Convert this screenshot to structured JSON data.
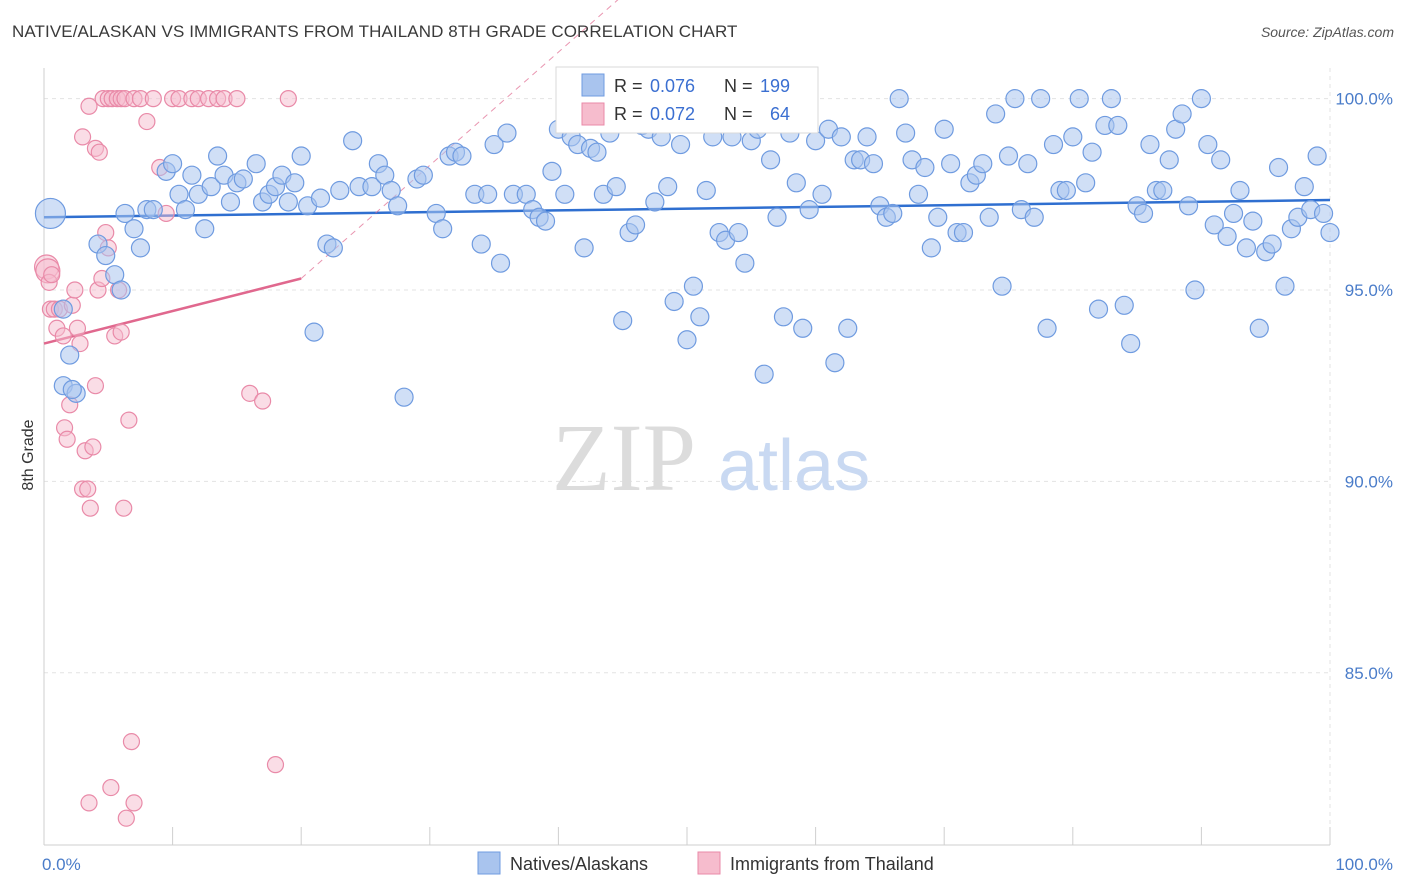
{
  "header": {
    "title": "NATIVE/ALASKAN VS IMMIGRANTS FROM THAILAND 8TH GRADE CORRELATION CHART",
    "source": "Source: ZipAtlas.com"
  },
  "watermark": {
    "zip": "ZIP",
    "atlas": "atlas"
  },
  "legend_box": {
    "rows": [
      {
        "r_label": "R = ",
        "r_value": "0.076",
        "n_label": "N = ",
        "n_value": "199"
      },
      {
        "r_label": "R = ",
        "r_value": "0.072",
        "n_label": "N = ",
        "n_value": "64"
      }
    ]
  },
  "bottom_legend": {
    "series1": "Natives/Alaskans",
    "series2": "Immigrants from Thailand"
  },
  "colors": {
    "blue_fill": "#a9c4ee",
    "blue_stroke": "#6f9be0",
    "blue_line": "#2f6fd0",
    "pink_fill": "#f6bccd",
    "pink_stroke": "#e98aa8",
    "pink_line": "#e0688e",
    "grid": "#e3e3e3",
    "axis_label": "#4a7cc9"
  },
  "chart_data": {
    "type": "scatter",
    "title": "NATIVE/ALASKAN VS IMMIGRANTS FROM THAILAND 8TH GRADE CORRELATION CHART",
    "xlabel": "",
    "ylabel": "8th Grade",
    "xlim": [
      0,
      100
    ],
    "ylim": [
      80.5,
      100.8
    ],
    "x_ticks": [
      "0.0%",
      "100.0%"
    ],
    "y_ticks": [
      {
        "value": 100,
        "label": "100.0%"
      },
      {
        "value": 95,
        "label": "95.0%"
      },
      {
        "value": 90,
        "label": "90.0%"
      },
      {
        "value": 85,
        "label": "85.0%"
      }
    ],
    "grid": true,
    "legend_position": "top-center",
    "series": [
      {
        "name": "Natives/Alaskans",
        "r": 0.076,
        "n": 199,
        "trend": {
          "x": [
            0,
            100
          ],
          "y": [
            96.9,
            97.35
          ]
        },
        "points": [
          [
            0.5,
            97.0
          ],
          [
            1.5,
            92.5
          ],
          [
            1.5,
            94.5
          ],
          [
            2.0,
            93.3
          ],
          [
            2.5,
            92.3
          ],
          [
            2.2,
            92.4
          ],
          [
            4.2,
            96.2
          ],
          [
            4.8,
            95.9
          ],
          [
            5.5,
            95.4
          ],
          [
            6.0,
            95.0
          ],
          [
            6.3,
            97.0
          ],
          [
            7.0,
            96.6
          ],
          [
            7.5,
            96.1
          ],
          [
            8.0,
            97.1
          ],
          [
            8.5,
            97.1
          ],
          [
            9.5,
            98.1
          ],
          [
            10.0,
            98.3
          ],
          [
            10.5,
            97.5
          ],
          [
            11.0,
            97.1
          ],
          [
            11.5,
            98.0
          ],
          [
            12.0,
            97.5
          ],
          [
            12.5,
            96.6
          ],
          [
            13.0,
            97.7
          ],
          [
            13.5,
            98.5
          ],
          [
            14.0,
            98.0
          ],
          [
            14.5,
            97.3
          ],
          [
            15.0,
            97.8
          ],
          [
            15.5,
            97.9
          ],
          [
            16.5,
            98.3
          ],
          [
            17.0,
            97.3
          ],
          [
            17.5,
            97.5
          ],
          [
            18.0,
            97.7
          ],
          [
            18.5,
            98.0
          ],
          [
            19.0,
            97.3
          ],
          [
            19.5,
            97.8
          ],
          [
            20.0,
            98.5
          ],
          [
            20.5,
            97.2
          ],
          [
            21.0,
            93.9
          ],
          [
            21.5,
            97.4
          ],
          [
            22.0,
            96.2
          ],
          [
            22.5,
            96.1
          ],
          [
            23.0,
            97.6
          ],
          [
            24.0,
            98.9
          ],
          [
            24.5,
            97.7
          ],
          [
            25.5,
            97.7
          ],
          [
            26.0,
            98.3
          ],
          [
            26.5,
            98.0
          ],
          [
            27.0,
            97.6
          ],
          [
            27.5,
            97.2
          ],
          [
            28.0,
            92.2
          ],
          [
            29.0,
            97.9
          ],
          [
            29.5,
            98.0
          ],
          [
            30.5,
            97.0
          ],
          [
            31.0,
            96.6
          ],
          [
            31.5,
            98.5
          ],
          [
            32.0,
            98.6
          ],
          [
            32.5,
            98.5
          ],
          [
            33.5,
            97.5
          ],
          [
            34.0,
            96.2
          ],
          [
            34.5,
            97.5
          ],
          [
            35.0,
            98.8
          ],
          [
            35.5,
            95.7
          ],
          [
            36.0,
            99.1
          ],
          [
            36.5,
            97.5
          ],
          [
            37.5,
            97.5
          ],
          [
            38.0,
            97.1
          ],
          [
            38.5,
            96.9
          ],
          [
            39.0,
            96.8
          ],
          [
            39.5,
            98.1
          ],
          [
            40.0,
            99.2
          ],
          [
            40.5,
            97.5
          ],
          [
            41.0,
            99.0
          ],
          [
            41.5,
            98.8
          ],
          [
            42.0,
            96.1
          ],
          [
            42.5,
            98.7
          ],
          [
            43.0,
            98.6
          ],
          [
            43.5,
            97.5
          ],
          [
            44.0,
            99.1
          ],
          [
            44.5,
            97.7
          ],
          [
            45.0,
            94.2
          ],
          [
            45.5,
            96.5
          ],
          [
            46.0,
            96.7
          ],
          [
            46.5,
            99.3
          ],
          [
            47.0,
            99.2
          ],
          [
            47.5,
            97.3
          ],
          [
            48.0,
            99.0
          ],
          [
            48.5,
            97.7
          ],
          [
            49.0,
            94.7
          ],
          [
            49.5,
            98.8
          ],
          [
            50.0,
            93.7
          ],
          [
            50.5,
            95.1
          ],
          [
            51.0,
            94.3
          ],
          [
            51.5,
            97.6
          ],
          [
            52.0,
            99.0
          ],
          [
            52.5,
            96.5
          ],
          [
            53.0,
            96.3
          ],
          [
            53.5,
            99.0
          ],
          [
            54.0,
            96.5
          ],
          [
            54.5,
            95.7
          ],
          [
            55.0,
            98.9
          ],
          [
            55.5,
            99.2
          ],
          [
            56.0,
            92.8
          ],
          [
            56.5,
            98.4
          ],
          [
            57.0,
            96.9
          ],
          [
            57.5,
            94.3
          ],
          [
            58.0,
            99.1
          ],
          [
            58.5,
            97.8
          ],
          [
            59.0,
            94.0
          ],
          [
            59.5,
            97.1
          ],
          [
            60.0,
            98.9
          ],
          [
            60.5,
            97.5
          ],
          [
            61.0,
            99.2
          ],
          [
            61.5,
            93.1
          ],
          [
            62.0,
            99.0
          ],
          [
            62.5,
            94.0
          ],
          [
            63.0,
            98.4
          ],
          [
            63.5,
            98.4
          ],
          [
            64.0,
            99.0
          ],
          [
            64.5,
            98.3
          ],
          [
            65.0,
            97.2
          ],
          [
            65.5,
            96.9
          ],
          [
            66.0,
            97.0
          ],
          [
            66.5,
            100.0
          ],
          [
            67.0,
            99.1
          ],
          [
            67.5,
            98.4
          ],
          [
            68.0,
            97.5
          ],
          [
            68.5,
            98.2
          ],
          [
            69.0,
            96.1
          ],
          [
            69.5,
            96.9
          ],
          [
            70.0,
            99.2
          ],
          [
            70.5,
            98.3
          ],
          [
            71.0,
            96.5
          ],
          [
            71.5,
            96.5
          ],
          [
            72.0,
            97.8
          ],
          [
            72.5,
            98.0
          ],
          [
            73.0,
            98.3
          ],
          [
            73.5,
            96.9
          ],
          [
            74.0,
            99.6
          ],
          [
            74.5,
            95.1
          ],
          [
            75.0,
            98.5
          ],
          [
            75.5,
            100.0
          ],
          [
            76.0,
            97.1
          ],
          [
            76.5,
            98.3
          ],
          [
            77.0,
            96.9
          ],
          [
            77.5,
            100.0
          ],
          [
            78.0,
            94.0
          ],
          [
            78.5,
            98.8
          ],
          [
            79.0,
            97.6
          ],
          [
            79.5,
            97.6
          ],
          [
            80.0,
            99.0
          ],
          [
            80.5,
            100.0
          ],
          [
            81.0,
            97.8
          ],
          [
            81.5,
            98.6
          ],
          [
            82.0,
            94.5
          ],
          [
            82.5,
            99.3
          ],
          [
            83.0,
            100.0
          ],
          [
            83.5,
            99.3
          ],
          [
            84.0,
            94.6
          ],
          [
            84.5,
            93.6
          ],
          [
            85.0,
            97.2
          ],
          [
            85.5,
            97.0
          ],
          [
            86.0,
            98.8
          ],
          [
            86.5,
            97.6
          ],
          [
            87.0,
            97.6
          ],
          [
            87.5,
            98.4
          ],
          [
            88.0,
            99.2
          ],
          [
            88.5,
            99.6
          ],
          [
            89.0,
            97.2
          ],
          [
            89.5,
            95.0
          ],
          [
            90.0,
            100.0
          ],
          [
            90.5,
            98.8
          ],
          [
            91.0,
            96.7
          ],
          [
            91.5,
            98.4
          ],
          [
            92.0,
            96.4
          ],
          [
            92.5,
            97.0
          ],
          [
            93.0,
            97.6
          ],
          [
            93.5,
            96.1
          ],
          [
            94.0,
            96.8
          ],
          [
            94.5,
            94.0
          ],
          [
            95.0,
            96.0
          ],
          [
            95.5,
            96.2
          ],
          [
            96.0,
            98.2
          ],
          [
            96.5,
            95.1
          ],
          [
            97.0,
            96.6
          ],
          [
            97.5,
            96.9
          ],
          [
            98.0,
            97.7
          ],
          [
            98.5,
            97.1
          ],
          [
            99.0,
            98.5
          ],
          [
            99.5,
            97.0
          ],
          [
            100.0,
            96.5
          ]
        ]
      },
      {
        "name": "Immigrants from Thailand",
        "r": 0.072,
        "n": 64,
        "trend": {
          "x": [
            0,
            20
          ],
          "y": [
            93.6,
            95.3
          ]
        },
        "points": [
          [
            0.2,
            95.6
          ],
          [
            0.3,
            95.5
          ],
          [
            0.4,
            95.2
          ],
          [
            0.5,
            94.5
          ],
          [
            0.6,
            95.4
          ],
          [
            0.8,
            94.5
          ],
          [
            1.0,
            94.0
          ],
          [
            1.2,
            94.5
          ],
          [
            1.5,
            93.8
          ],
          [
            1.6,
            91.4
          ],
          [
            1.8,
            91.1
          ],
          [
            2.0,
            92.0
          ],
          [
            2.2,
            94.6
          ],
          [
            2.4,
            95.0
          ],
          [
            2.6,
            94.0
          ],
          [
            2.8,
            93.6
          ],
          [
            3.0,
            89.8
          ],
          [
            3.2,
            90.8
          ],
          [
            3.4,
            89.8
          ],
          [
            3.6,
            89.3
          ],
          [
            3.8,
            90.9
          ],
          [
            3.5,
            81.6
          ],
          [
            4.0,
            92.5
          ],
          [
            4.2,
            95.0
          ],
          [
            4.5,
            95.3
          ],
          [
            4.8,
            96.5
          ],
          [
            5.0,
            96.1
          ],
          [
            5.2,
            82.0
          ],
          [
            5.5,
            93.8
          ],
          [
            5.8,
            95.0
          ],
          [
            6.0,
            93.9
          ],
          [
            6.2,
            89.3
          ],
          [
            6.4,
            81.2
          ],
          [
            6.6,
            91.6
          ],
          [
            6.8,
            83.2
          ],
          [
            7.0,
            81.6
          ],
          [
            3.0,
            99.0
          ],
          [
            3.5,
            99.8
          ],
          [
            4.0,
            98.7
          ],
          [
            4.3,
            98.6
          ],
          [
            4.6,
            100.0
          ],
          [
            5.0,
            100.0
          ],
          [
            5.3,
            100.0
          ],
          [
            5.7,
            100.0
          ],
          [
            6.0,
            100.0
          ],
          [
            6.3,
            100.0
          ],
          [
            7.0,
            100.0
          ],
          [
            7.5,
            100.0
          ],
          [
            8.0,
            99.4
          ],
          [
            8.5,
            100.0
          ],
          [
            9.0,
            98.2
          ],
          [
            9.5,
            97.0
          ],
          [
            10.0,
            100.0
          ],
          [
            10.5,
            100.0
          ],
          [
            11.5,
            100.0
          ],
          [
            12.0,
            100.0
          ],
          [
            12.8,
            100.0
          ],
          [
            13.5,
            100.0
          ],
          [
            14.0,
            100.0
          ],
          [
            15.0,
            100.0
          ],
          [
            16.0,
            92.3
          ],
          [
            17.0,
            92.1
          ],
          [
            18.0,
            82.6
          ],
          [
            19.0,
            100.0
          ]
        ]
      }
    ]
  }
}
